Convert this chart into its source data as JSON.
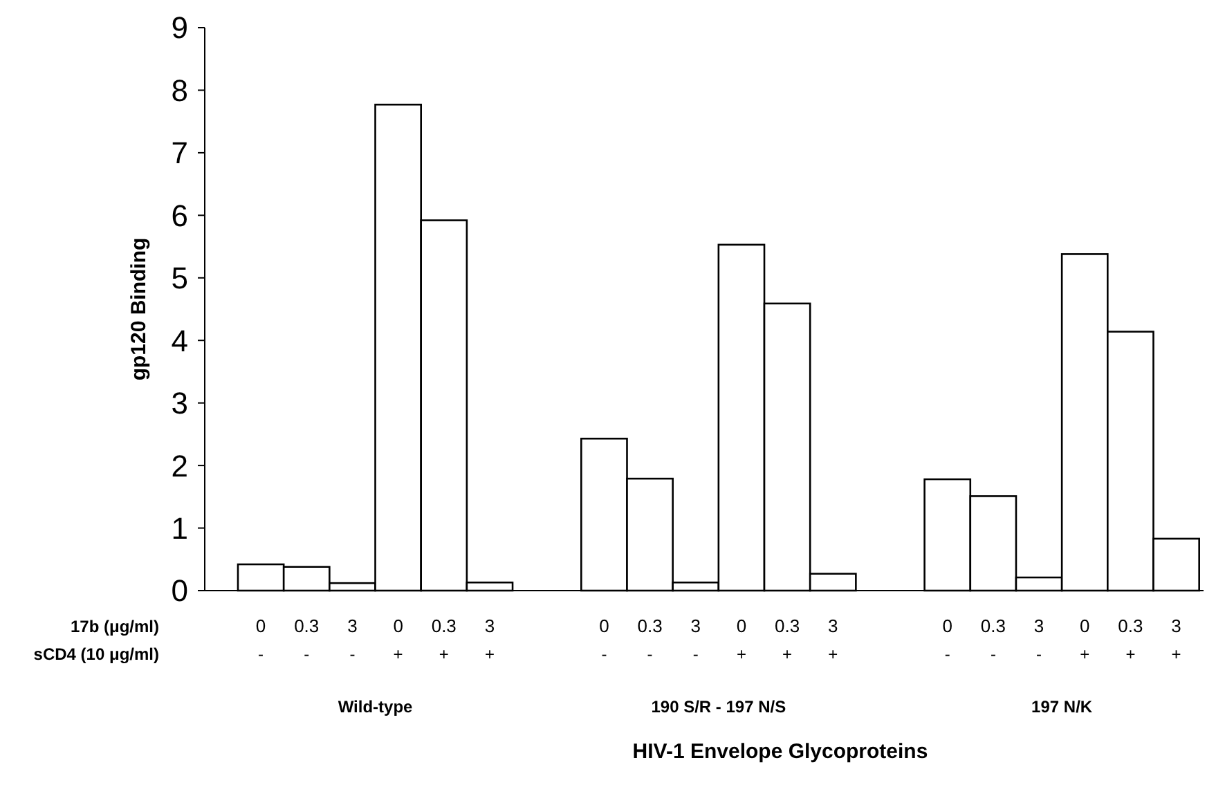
{
  "chart_data": {
    "type": "bar",
    "xlabel": "HIV-1 Envelope Glycoproteins",
    "ylabel": "gp120 Binding",
    "categories": [
      "0\n-",
      "0.3\n-",
      "3\n-",
      "0\n+",
      "0.3\n+",
      "3\n+",
      "0\n-",
      "0.3\n-",
      "3\n-",
      "0\n+",
      "0.3\n+",
      "3\n+",
      "0\n-",
      "0.3\n-",
      "3\n-",
      "0\n+",
      "0.3\n+",
      "3\n+"
    ],
    "values": [
      0.42,
      0.38,
      0.12,
      7.77,
      5.92,
      0.13,
      2.43,
      1.79,
      0.13,
      5.53,
      4.59,
      0.27,
      1.78,
      1.51,
      0.21,
      5.38,
      4.14,
      0.83
    ],
    "color": "#ffffff",
    "ylim": [
      0,
      9
    ],
    "yticks": [
      0,
      1,
      2,
      3,
      4,
      5,
      6,
      7,
      8,
      9
    ],
    "grid": false,
    "annotations": [
      "17b (μg/ml)",
      "sCD4 (10 μg/ml)",
      "Wild-type",
      "190 S/R - 197 N/S",
      "197 N/K"
    ]
  }
}
